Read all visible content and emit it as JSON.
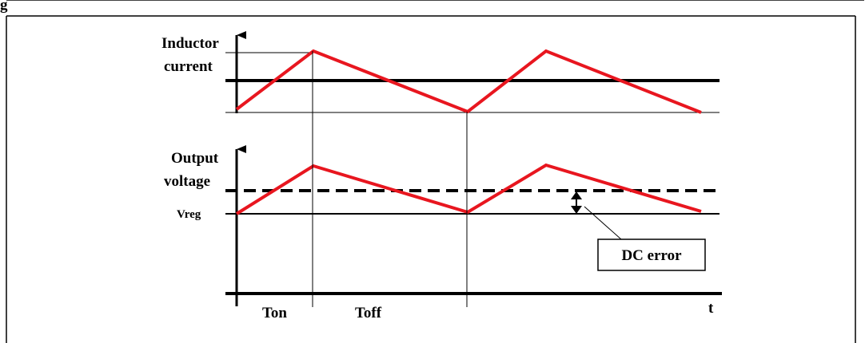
{
  "labels": {
    "heading_fragment": "g",
    "inductor_line1": "Inductor",
    "inductor_line2": "current",
    "output_line1": "Output",
    "output_line2": "voltage",
    "vreg": "Vreg",
    "dc_error": "DC error",
    "ton": "Ton",
    "toff": "Toff",
    "t_axis": "t"
  },
  "colors": {
    "waveform": "#e8161f",
    "lines": "#000000",
    "background": "#ffffff"
  }
}
